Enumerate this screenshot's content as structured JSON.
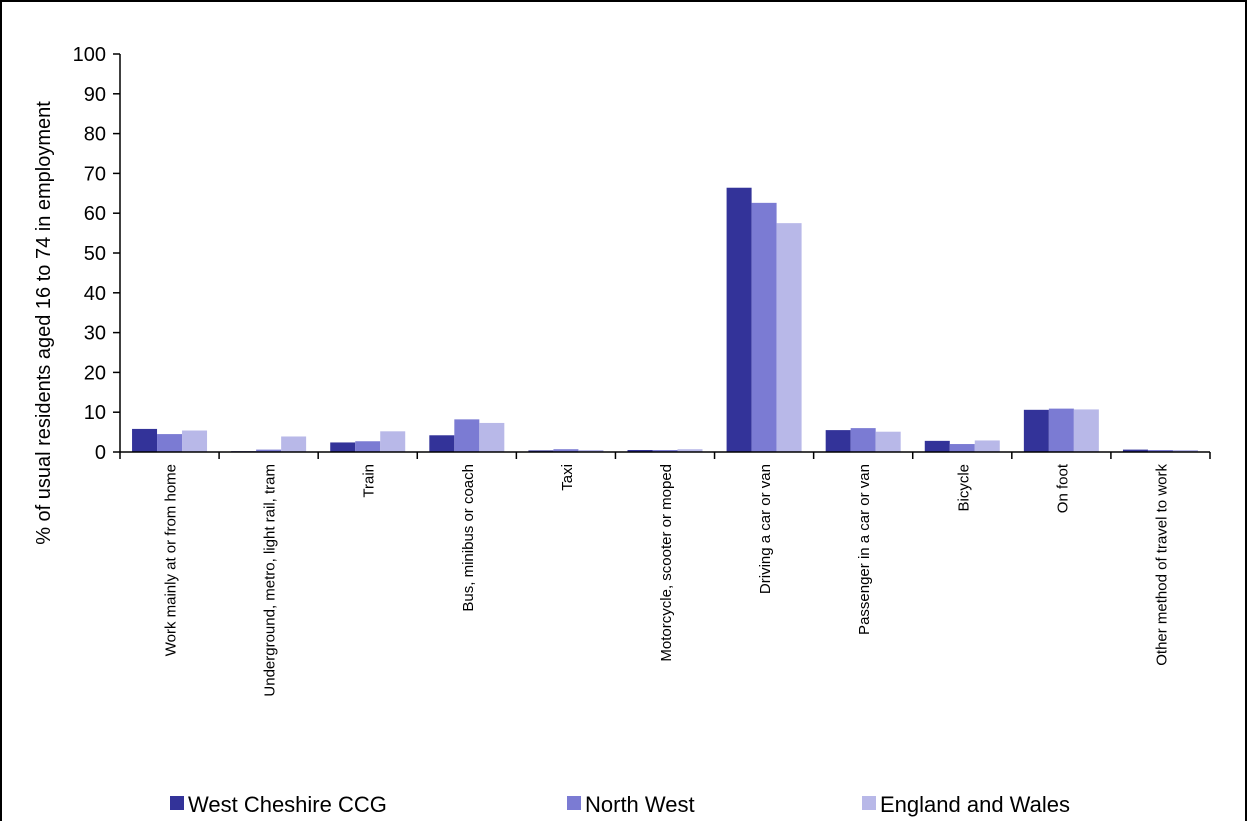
{
  "chart_data": {
    "type": "bar",
    "title": "",
    "xlabel": "",
    "ylabel": "% of usual residents aged 16 to 74 in employment",
    "ylim": [
      0,
      100
    ],
    "yticks": [
      0,
      10,
      20,
      30,
      40,
      50,
      60,
      70,
      80,
      90,
      100
    ],
    "grid": false,
    "legend_position": "bottom",
    "categories": [
      "Work mainly at or from home",
      "Underground, metro, light rail, tram",
      "Train",
      "Bus, minibus or coach",
      "Taxi",
      "Motorcycle, scooter or moped",
      "Driving a car or van",
      "Passenger in a car or van",
      "Bicycle",
      "On foot",
      "Other method of travel to work"
    ],
    "series": [
      {
        "name": "West Cheshire CCG",
        "color": "#333399",
        "values": [
          5.8,
          0.2,
          2.4,
          4.2,
          0.4,
          0.5,
          66.4,
          5.5,
          2.8,
          10.6,
          0.6
        ]
      },
      {
        "name": "North West",
        "color": "#7b7bd3",
        "values": [
          4.5,
          0.6,
          2.7,
          8.2,
          0.7,
          0.5,
          62.6,
          6.0,
          2.0,
          10.9,
          0.5
        ]
      },
      {
        "name": "England and Wales",
        "color": "#b8b8e8",
        "values": [
          5.4,
          3.9,
          5.2,
          7.3,
          0.5,
          0.7,
          57.5,
          5.1,
          2.9,
          10.7,
          0.5
        ]
      }
    ]
  }
}
